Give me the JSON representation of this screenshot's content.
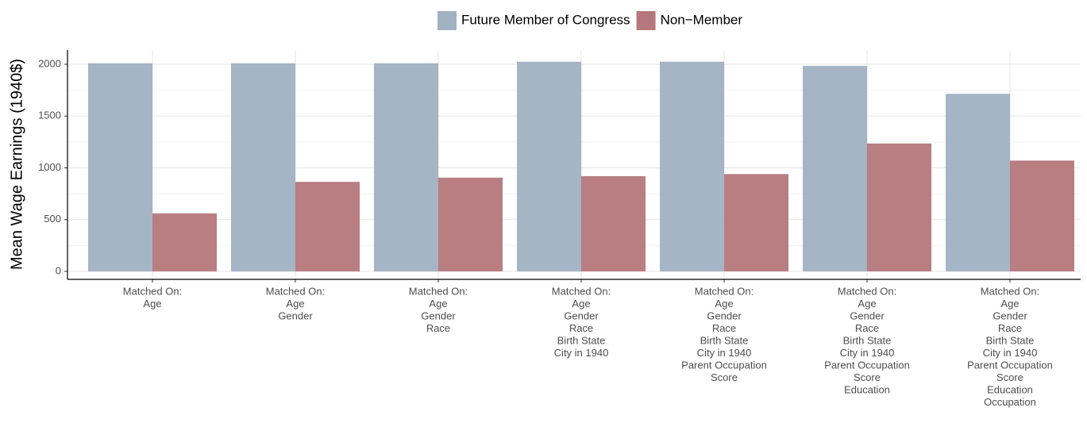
{
  "chart_data": {
    "type": "bar",
    "y_label": "Mean Wage Earnings (1940$)",
    "categories": [
      [
        "Matched On:",
        "Age"
      ],
      [
        "Matched On:",
        "Age",
        "Gender"
      ],
      [
        "Matched On:",
        "Age",
        "Gender",
        "Race"
      ],
      [
        "Matched On:",
        "Age",
        "Gender",
        "Race",
        "Birth State",
        "City in 1940"
      ],
      [
        "Matched On:",
        "Age",
        "Gender",
        "Race",
        "Birth State",
        "City in 1940",
        "Parent Occupation",
        "Score"
      ],
      [
        "Matched On:",
        "Age",
        "Gender",
        "Race",
        "Birth State",
        "City in 1940",
        "Parent Occupation",
        "Score",
        "Education"
      ],
      [
        "Matched On:",
        "Age",
        "Gender",
        "Race",
        "Birth State",
        "City in 1940",
        "Parent Occupation",
        "Score",
        "Education",
        "Occupation"
      ]
    ],
    "series": [
      {
        "name": "Future Member of Congress",
        "color": "#a0b1c2",
        "values": [
          2010,
          2010,
          2010,
          2025,
          2025,
          1985,
          1715
        ]
      },
      {
        "name": "Non−Member",
        "color": "#b5777b",
        "values": [
          560,
          865,
          905,
          920,
          940,
          1235,
          1070
        ]
      }
    ],
    "ylim": [
      -77,
      2138
    ],
    "yticks": [
      0,
      500,
      1000,
      1500,
      2000
    ],
    "grid": true,
    "legend": "top"
  }
}
